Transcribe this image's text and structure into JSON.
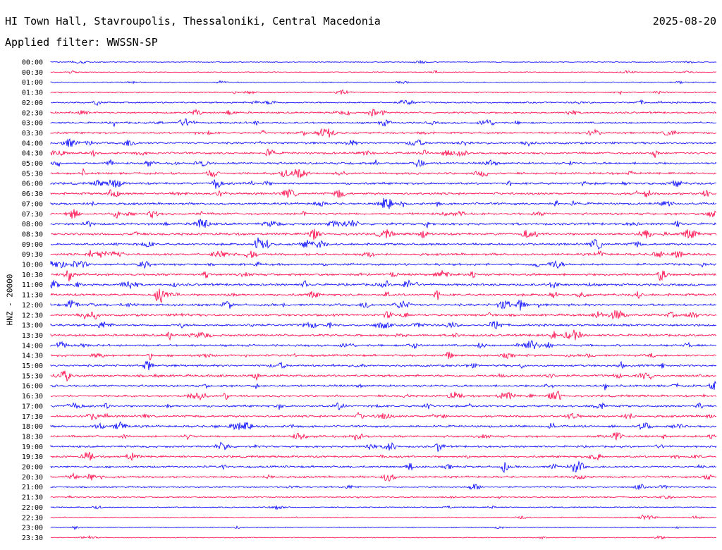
{
  "header": {
    "station": "HI Town Hall, Stavroupolis, Thessaloniki, Central Macedonia",
    "filter": "Applied filter: WWSSN-SP",
    "date": "2025-08-20"
  },
  "chart_data": {
    "type": "line",
    "ylabel": "HNZ - 20000",
    "row_labels": [
      "00:00",
      "00:30",
      "01:00",
      "01:30",
      "02:00",
      "02:30",
      "03:00",
      "03:30",
      "04:00",
      "04:30",
      "05:00",
      "05:30",
      "06:00",
      "06:30",
      "07:00",
      "07:30",
      "08:00",
      "08:30",
      "09:00",
      "09:30",
      "10:00",
      "10:30",
      "11:00",
      "11:30",
      "12:00",
      "12:30",
      "13:00",
      "13:30",
      "14:00",
      "14:30",
      "15:00",
      "15:30",
      "16:00",
      "16:30",
      "17:00",
      "17:30",
      "18:00",
      "18:30",
      "19:00",
      "19:30",
      "20:00",
      "20:30",
      "21:00",
      "21:30",
      "22:00",
      "22:30",
      "23:00",
      "23:30"
    ],
    "colors": [
      "#0000ff",
      "#ff0044"
    ],
    "activity": [
      0.15,
      0.18,
      0.2,
      0.3,
      0.55,
      0.65,
      0.7,
      0.75,
      0.8,
      0.8,
      0.85,
      0.85,
      0.9,
      0.9,
      0.9,
      0.9,
      0.95,
      0.95,
      0.9,
      0.9,
      0.95,
      0.95,
      0.95,
      0.95,
      0.95,
      0.9,
      0.9,
      0.9,
      0.85,
      0.85,
      0.85,
      0.85,
      0.8,
      0.85,
      0.85,
      0.85,
      0.85,
      0.85,
      0.8,
      0.8,
      0.8,
      0.75,
      0.5,
      0.35,
      0.25,
      0.2,
      0.2,
      0.15
    ],
    "grid": false
  }
}
